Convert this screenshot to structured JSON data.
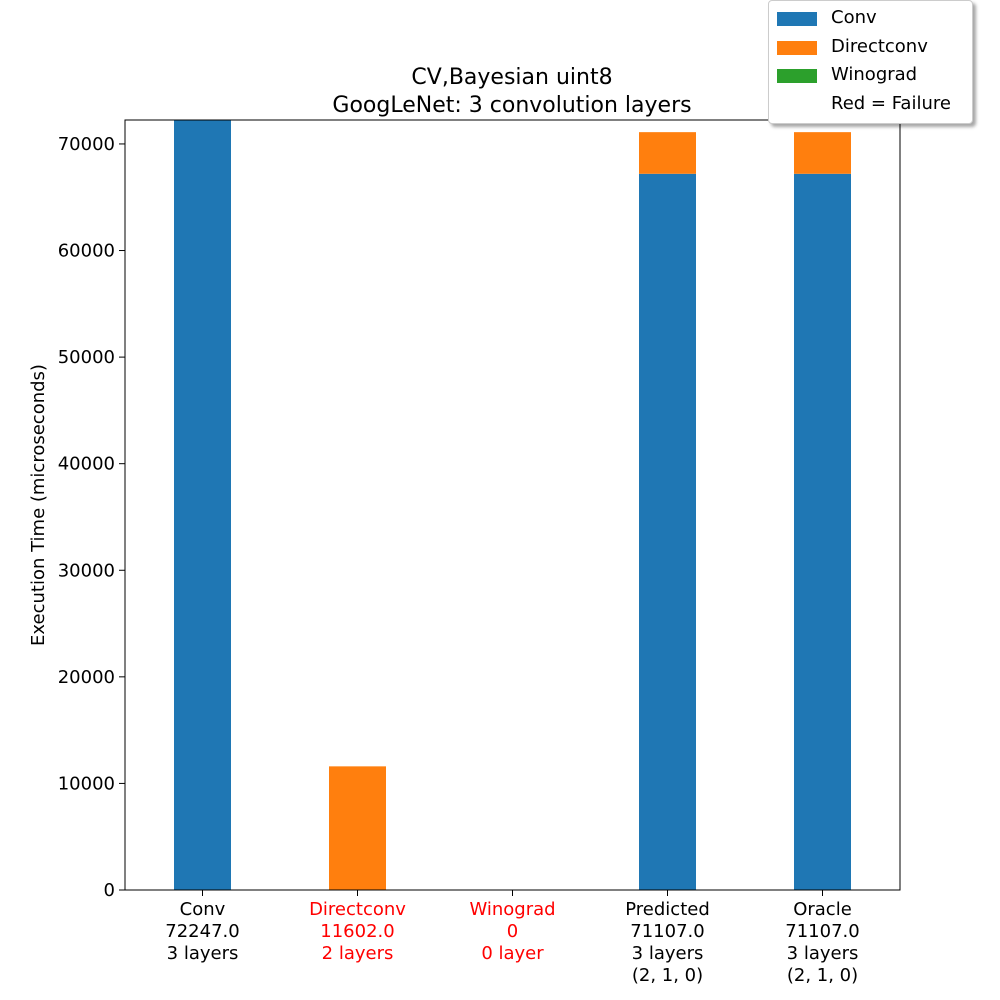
{
  "chart_data": {
    "type": "bar",
    "stacked": true,
    "title": "CV,Bayesian uint8",
    "subtitle": "GoogLeNet: 3 convolution layers",
    "ylabel": "Execution Time (microseconds)",
    "xlabel": "",
    "ylim": [
      0,
      72247
    ],
    "yticks": [
      0,
      10000,
      20000,
      30000,
      40000,
      50000,
      60000,
      70000
    ],
    "categories": [
      {
        "lines": [
          "Conv",
          "72247.0",
          "3 layers"
        ],
        "failure": false
      },
      {
        "lines": [
          "Directconv",
          "11602.0",
          "2 layers"
        ],
        "failure": true
      },
      {
        "lines": [
          "Winograd",
          "0",
          "0 layer"
        ],
        "failure": true
      },
      {
        "lines": [
          "Predicted",
          "71107.0",
          "3 layers",
          "(2, 1, 0)"
        ],
        "failure": false
      },
      {
        "lines": [
          "Oracle",
          "71107.0",
          "3 layers",
          "(2, 1, 0)"
        ],
        "failure": false
      }
    ],
    "series": [
      {
        "name": "Conv",
        "color": "#1f77b4",
        "values": [
          72247,
          0,
          0,
          67200,
          67200
        ]
      },
      {
        "name": "Directconv",
        "color": "#ff7f0e",
        "values": [
          0,
          11602,
          0,
          3907,
          3907
        ]
      },
      {
        "name": "Winograd",
        "color": "#2ca02c",
        "values": [
          0,
          0,
          0,
          0,
          0
        ]
      }
    ],
    "legend": {
      "placement": "top-right",
      "note": "Red = Failure"
    },
    "failure_color": "#ff0000",
    "grid": false
  }
}
